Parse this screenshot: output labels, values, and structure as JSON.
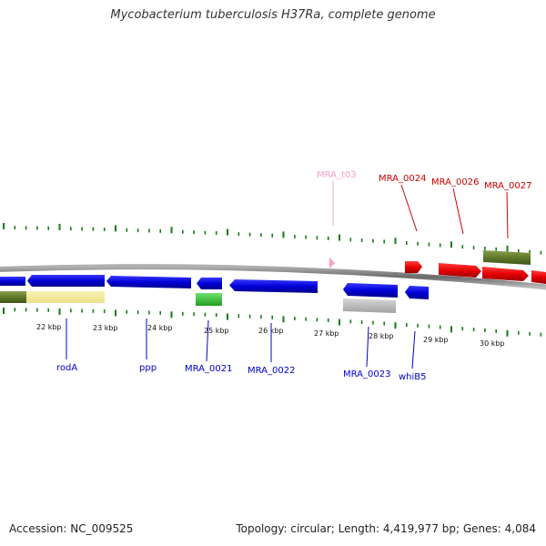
{
  "title": "Mycobacterium tuberculosis H37Ra, complete genome",
  "footer": {
    "accession": "Accession: NC_009525",
    "summary": "Topology: circular; Length: 4,419,977 bp; Genes: 4,084"
  },
  "colors": {
    "forward_cds": "#e60000",
    "reverse_cds": "#0000dd",
    "trna": "#f7a0c8",
    "gc_skew": "#1a7a1a",
    "backbone": "#808080"
  },
  "scale_labels": [
    "22 kbp",
    "23 kbp",
    "24 kbp",
    "25 kbp",
    "26 kbp",
    "27 kbp",
    "28 kbp",
    "29 kbp",
    "30 kbp"
  ],
  "genes_top": [
    "MRA_t03",
    "MRA_0024",
    "MRA_0026",
    "MRA_0027"
  ],
  "genes_bottom": [
    "rodA",
    "ppp",
    "MRA_0021",
    "MRA_0022",
    "MRA_0023",
    "whiB5"
  ]
}
